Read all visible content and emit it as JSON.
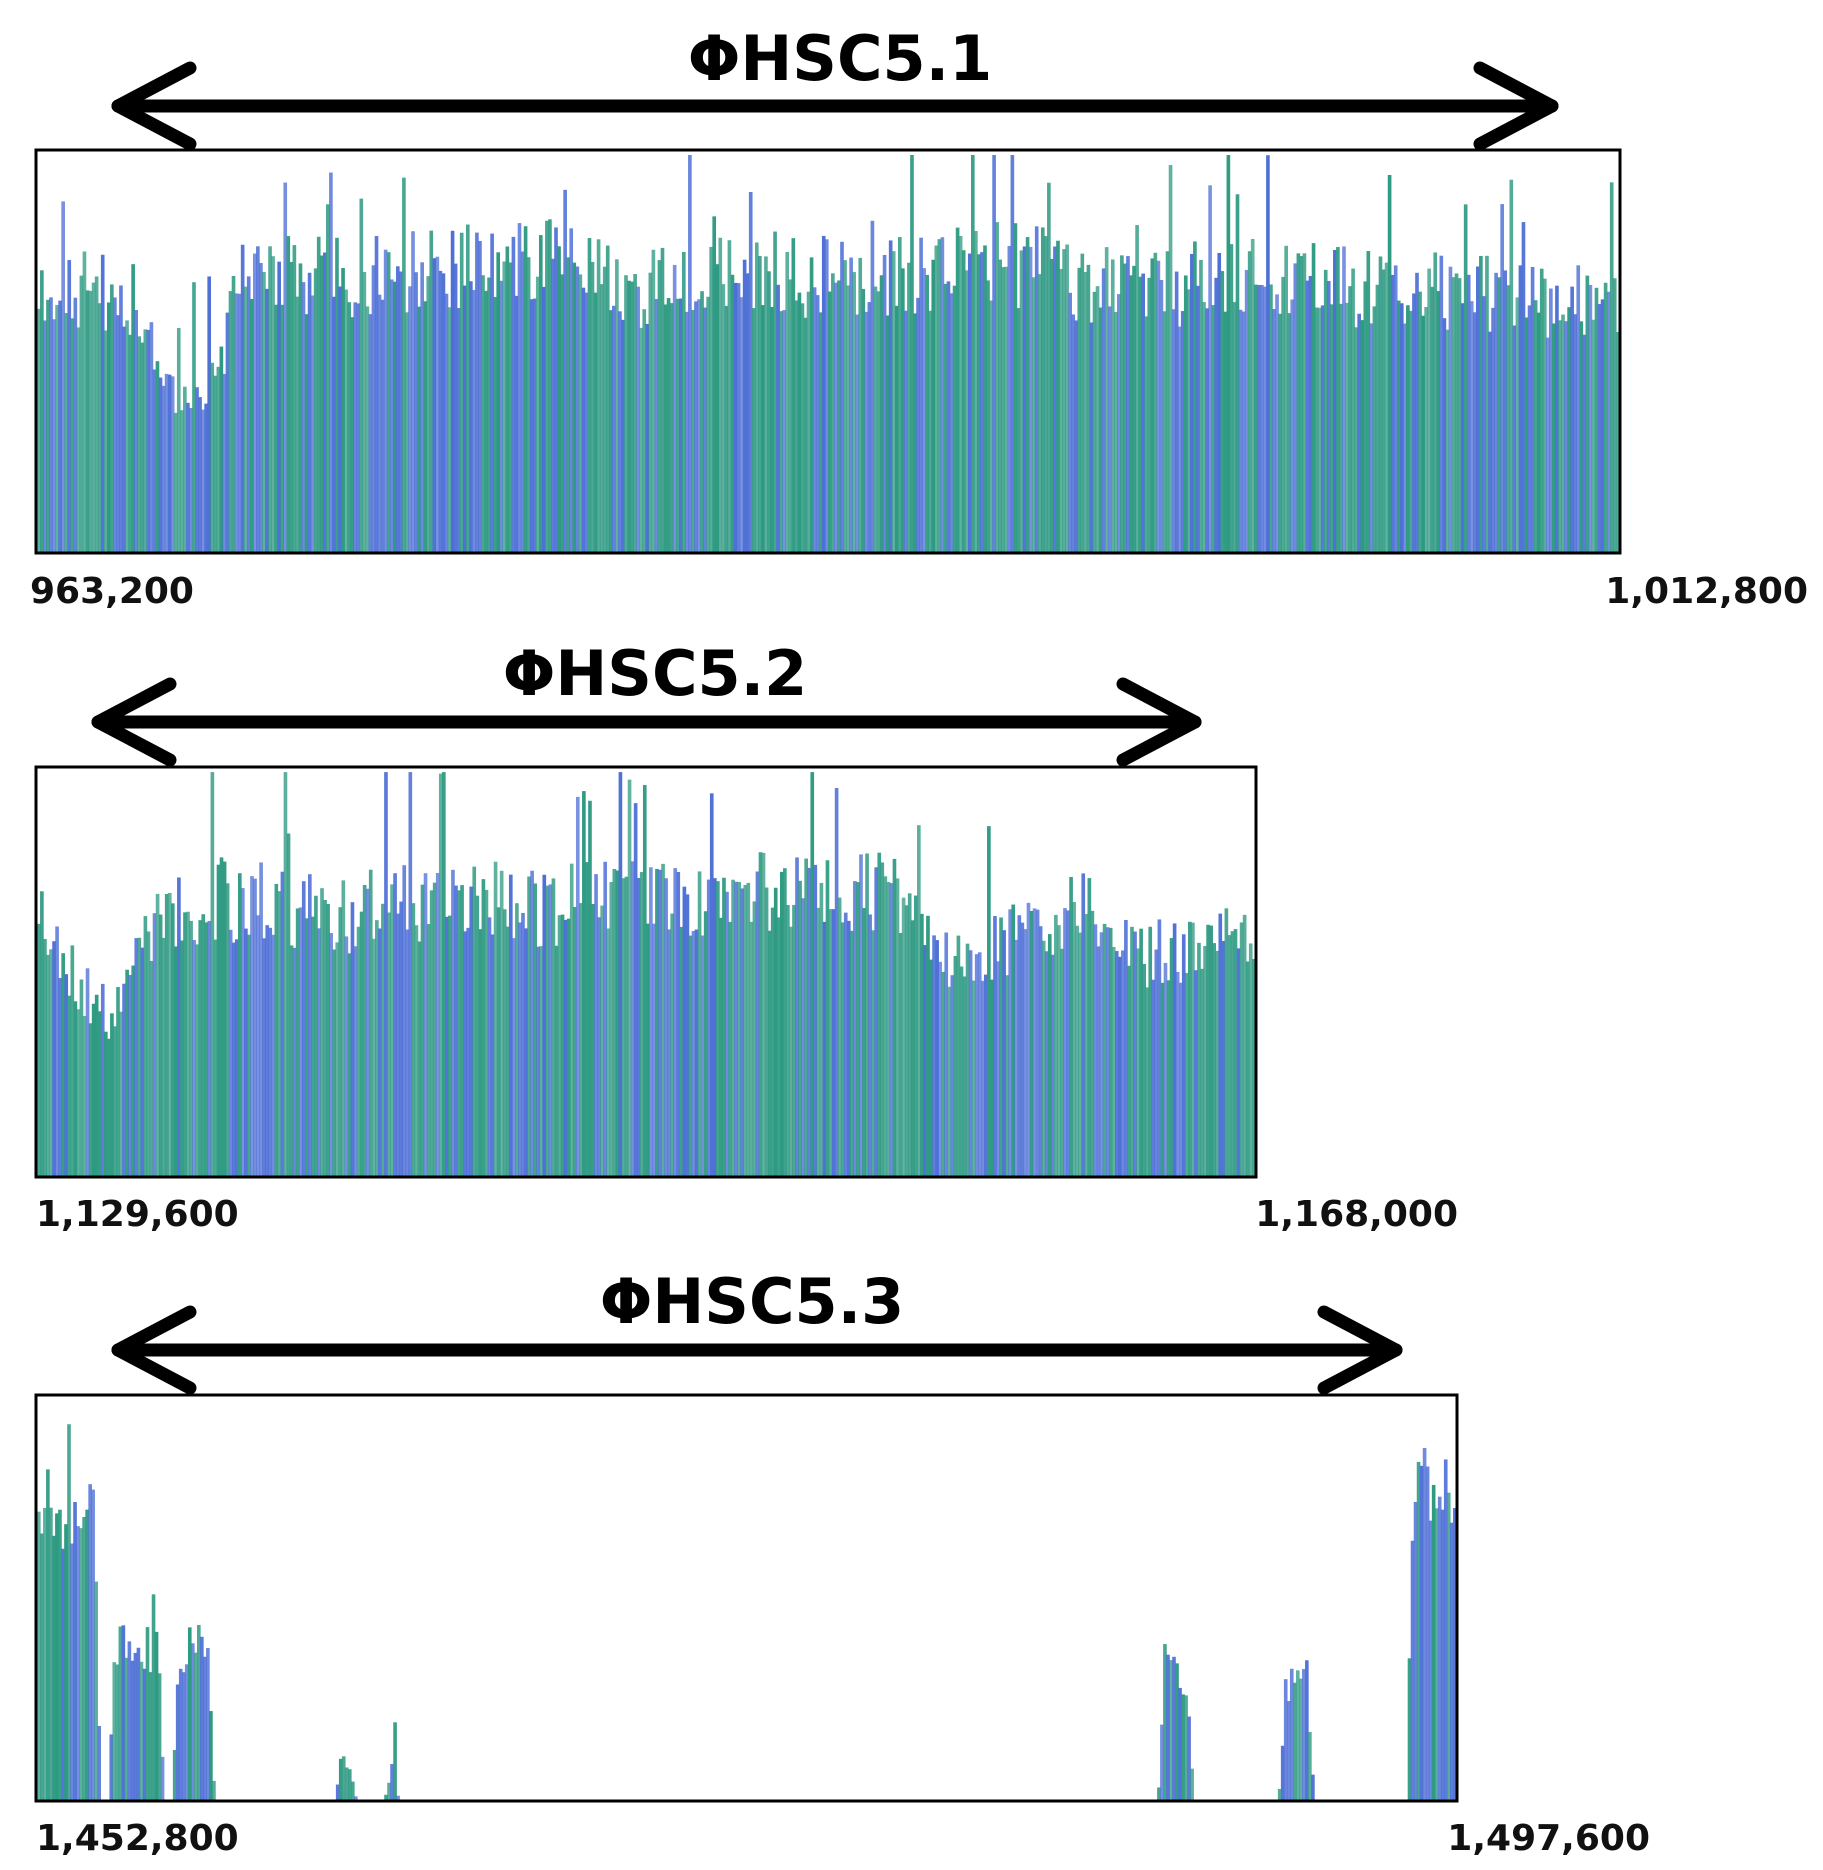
{
  "chart_data": [
    {
      "type": "bar",
      "title": "ΦHSC5.1",
      "x_start_label": "963,200",
      "x_end_label": "1,012,800",
      "colors": [
        "#2e9a82",
        "#4d6fd6"
      ],
      "profile": [
        [
          0,
          0.68
        ],
        [
          0.06,
          0.66
        ],
        [
          0.09,
          0.4
        ],
        [
          0.11,
          0.42
        ],
        [
          0.13,
          0.7
        ],
        [
          0.25,
          0.72
        ],
        [
          0.33,
          0.76
        ],
        [
          0.38,
          0.68
        ],
        [
          0.46,
          0.72
        ],
        [
          0.52,
          0.7
        ],
        [
          0.62,
          0.74
        ],
        [
          0.7,
          0.66
        ],
        [
          0.76,
          0.72
        ],
        [
          0.84,
          0.68
        ],
        [
          0.92,
          0.66
        ],
        [
          1.0,
          0.64
        ]
      ]
    },
    {
      "type": "bar",
      "title": "ΦHSC5.2",
      "x_start_label": "1,129,600",
      "x_end_label": "1,168,000",
      "colors": [
        "#2e9a82",
        "#4d6fd6"
      ],
      "profile": [
        [
          0,
          0.7
        ],
        [
          0.03,
          0.5
        ],
        [
          0.06,
          0.4
        ],
        [
          0.09,
          0.62
        ],
        [
          0.15,
          0.7
        ],
        [
          0.25,
          0.66
        ],
        [
          0.33,
          0.7
        ],
        [
          0.42,
          0.68
        ],
        [
          0.5,
          0.7
        ],
        [
          0.56,
          0.66
        ],
        [
          0.6,
          0.72
        ],
        [
          0.7,
          0.72
        ],
        [
          0.76,
          0.52
        ],
        [
          0.8,
          0.6
        ],
        [
          0.86,
          0.7
        ],
        [
          0.91,
          0.56
        ],
        [
          1.0,
          0.6
        ]
      ]
    },
    {
      "type": "bar",
      "title": "ΦHSC5.3",
      "x_start_label": "1,452,800",
      "x_end_label": "1,497,600",
      "colors": [
        "#2e9a82",
        "#4d6fd6"
      ],
      "profile": [
        [
          0,
          0.8
        ],
        [
          0.04,
          0.7
        ],
        [
          0.045,
          0
        ],
        [
          0.05,
          0
        ],
        [
          0.055,
          0.4
        ],
        [
          0.085,
          0.38
        ],
        [
          0.09,
          0
        ],
        [
          0.095,
          0
        ],
        [
          0.1,
          0.38
        ],
        [
          0.12,
          0.4
        ],
        [
          0.125,
          0
        ],
        [
          0.21,
          0
        ],
        [
          0.215,
          0.12
        ],
        [
          0.22,
          0.08
        ],
        [
          0.225,
          0
        ],
        [
          0.245,
          0
        ],
        [
          0.25,
          0.08
        ],
        [
          0.255,
          0
        ],
        [
          0.79,
          0
        ],
        [
          0.795,
          0.38
        ],
        [
          0.81,
          0.3
        ],
        [
          0.815,
          0
        ],
        [
          0.875,
          0
        ],
        [
          0.88,
          0.28
        ],
        [
          0.895,
          0.32
        ],
        [
          0.9,
          0
        ],
        [
          0.965,
          0
        ],
        [
          0.97,
          0.82
        ],
        [
          1.0,
          0.74
        ]
      ]
    }
  ]
}
